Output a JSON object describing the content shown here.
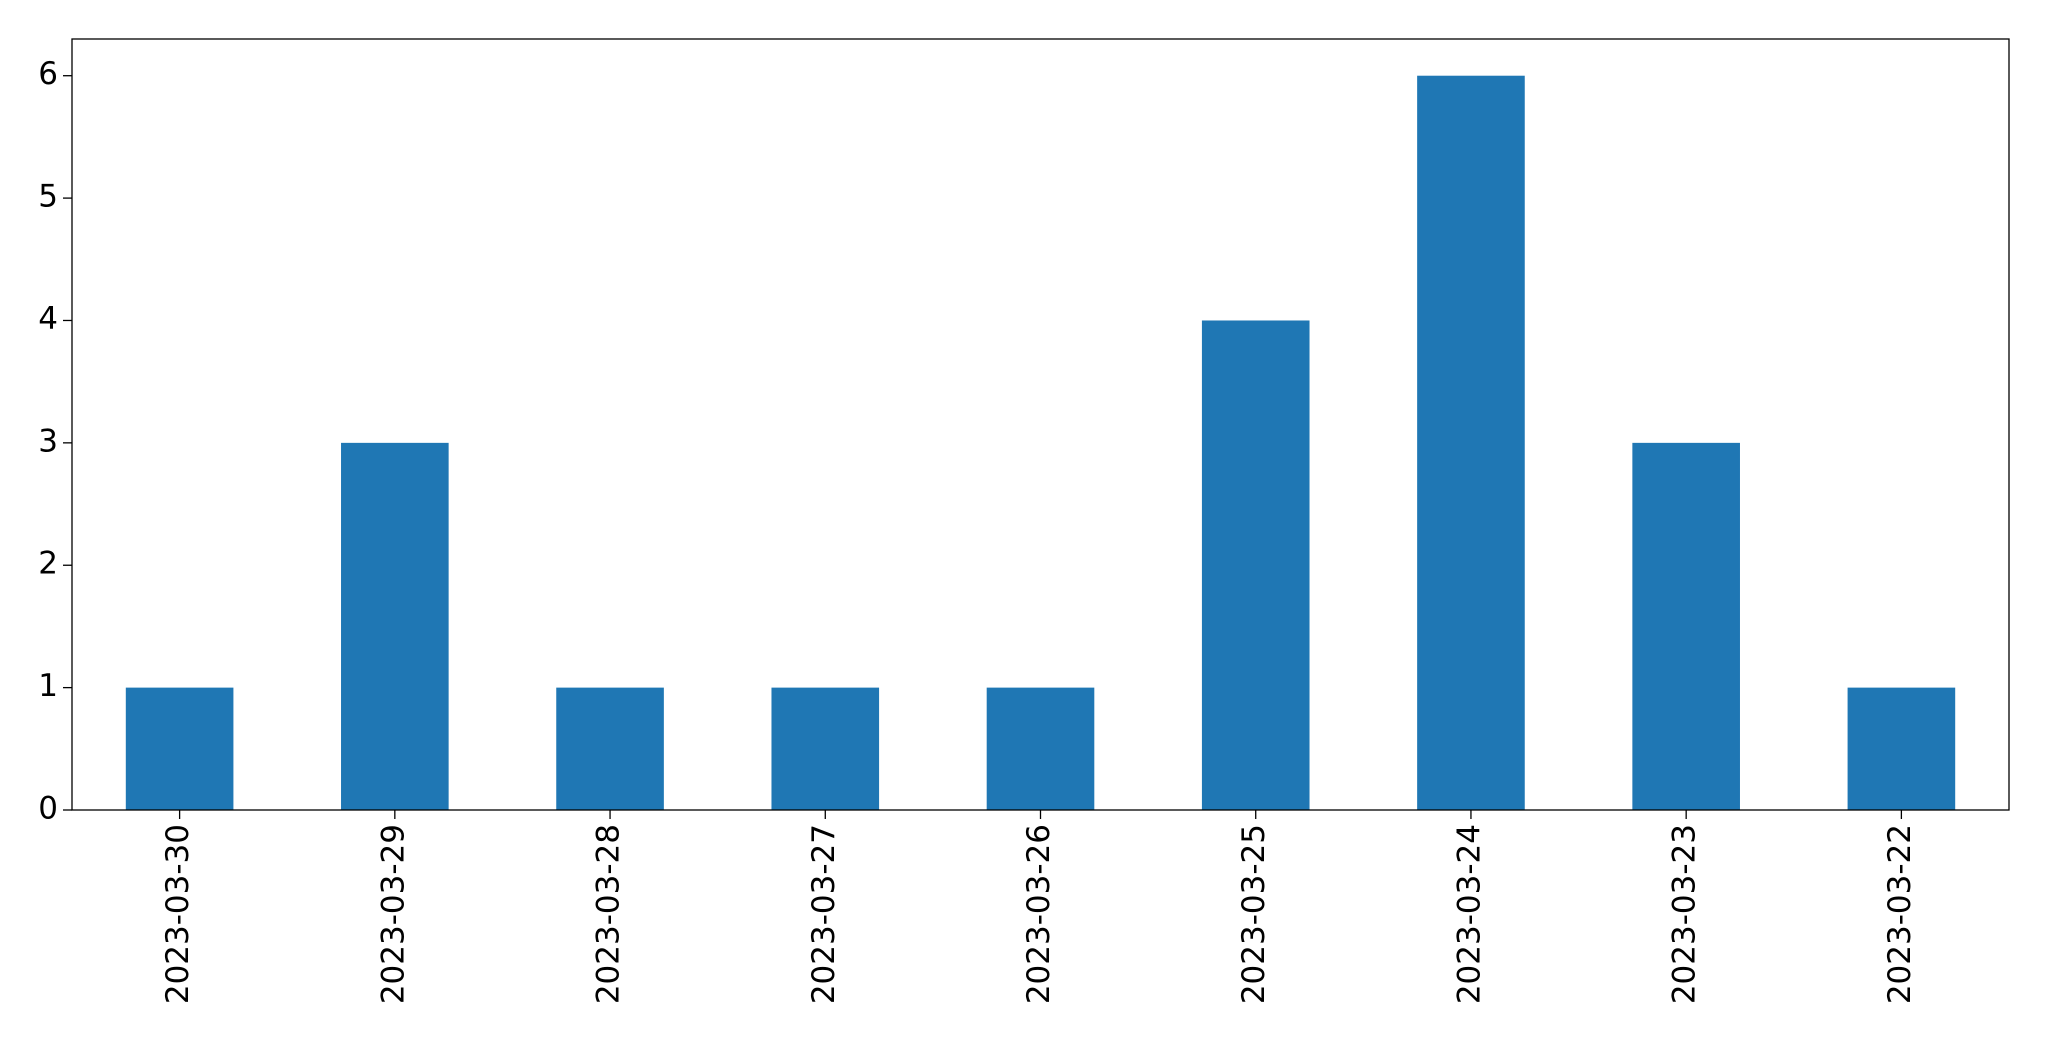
{
  "chart_data": {
    "type": "bar",
    "categories": [
      "2023-03-30",
      "2023-03-29",
      "2023-03-28",
      "2023-03-27",
      "2023-03-26",
      "2023-03-25",
      "2023-03-24",
      "2023-03-23",
      "2023-03-22"
    ],
    "values": [
      1,
      3,
      1,
      1,
      1,
      4,
      6,
      3,
      1
    ],
    "color": "#1f77b4",
    "ylim": [
      0,
      6.3
    ],
    "yticks": [
      0,
      1,
      2,
      3,
      4,
      5,
      6
    ],
    "grid": false
  }
}
